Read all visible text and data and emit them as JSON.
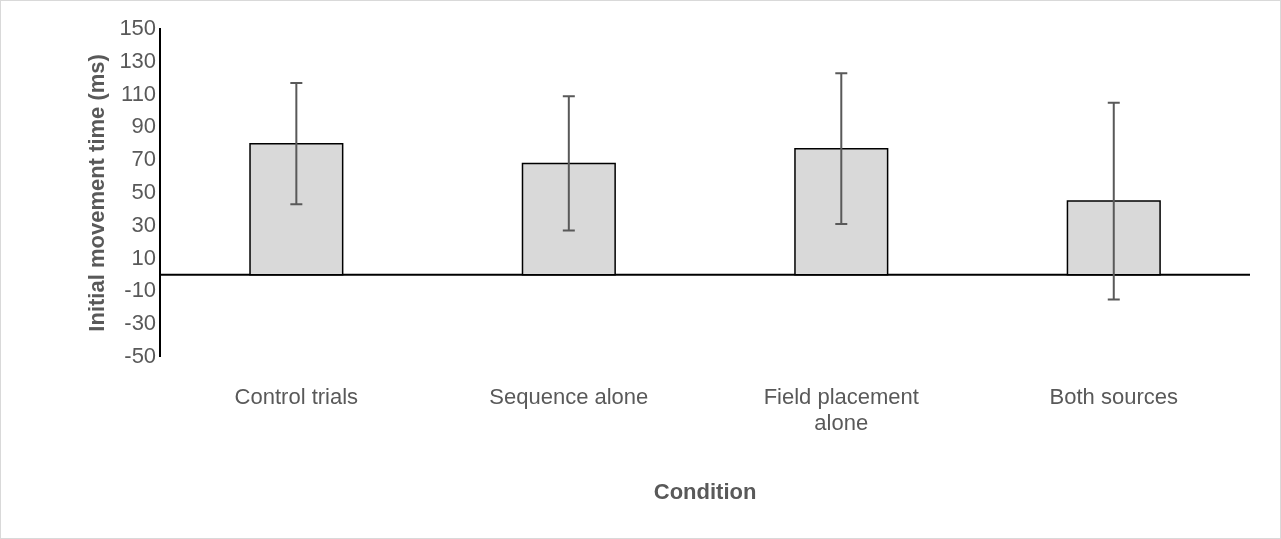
{
  "chart_data": {
    "type": "bar",
    "xlabel": "Condition",
    "ylabel": "Initial movement time (ms)",
    "categories": [
      "Control trials",
      "Sequence alone",
      "Field placement alone",
      "Both sources"
    ],
    "values": [
      80,
      68,
      77,
      45
    ],
    "errors": [
      37,
      41,
      46,
      60
    ],
    "color": "#d9d9d9",
    "ylim": [
      -50,
      150
    ],
    "yticks": [
      -50,
      -30,
      -10,
      10,
      30,
      50,
      70,
      90,
      110,
      130,
      150
    ],
    "grid": false
  }
}
